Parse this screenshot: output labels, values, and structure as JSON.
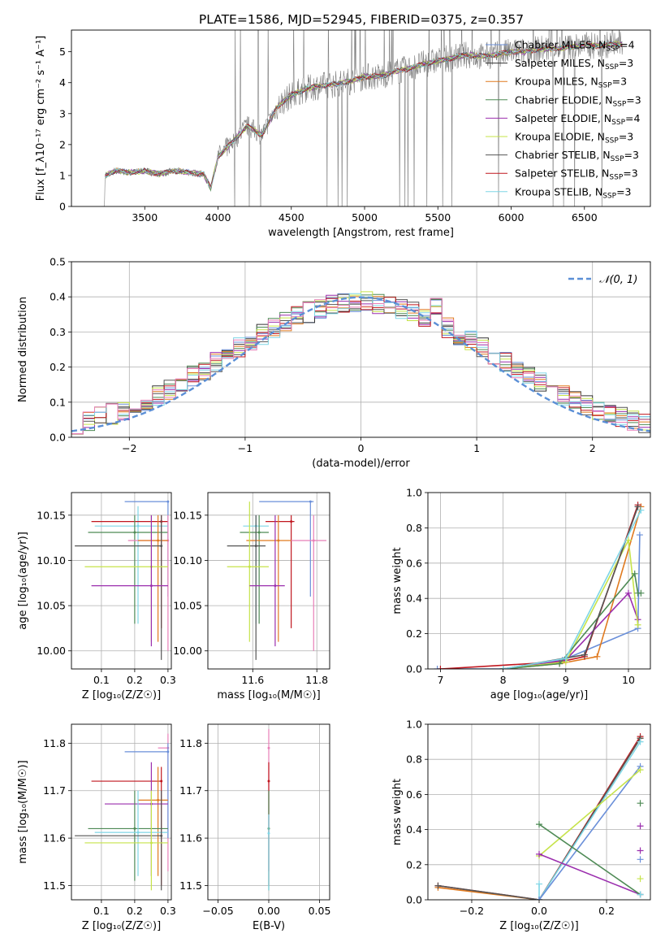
{
  "title": "PLATE=1586, MJD=52945, FIBERID=0375, z=0.357",
  "colors": {
    "chabrier_miles": "#6a8fd9",
    "salpeter_miles": "#333333",
    "kroupa_miles": "#e07a1f",
    "chabrier_elodie": "#4e8a55",
    "salpeter_elodie": "#9b2fae",
    "kroupa_elodie": "#c6e34a",
    "chabrier_stelib": "#555555",
    "salpeter_stelib": "#c0161e",
    "kroupa_stelib": "#7fd6e6",
    "spectrum": "#808080",
    "pink": "#e87fb8",
    "grid": "#b0b0b0"
  },
  "chart_data": [
    {
      "id": "spectrum",
      "type": "line",
      "xlabel": "wavelength [Angstrom, rest frame]",
      "ylabel": "Flux [f_λ10⁻¹⁷ erg cm⁻² s⁻¹ A⁻¹]",
      "xlim": [
        3000,
        6950
      ],
      "ylim": [
        0,
        5.7
      ],
      "xticks": [
        3500,
        4000,
        4500,
        5000,
        5500,
        6000,
        6500
      ],
      "yticks": [
        0,
        1,
        2,
        3,
        4,
        5
      ],
      "grid": false,
      "legend_position": "top-right",
      "legend": [
        {
          "key": "chabrier_miles",
          "label": "Chabrier MILES, N",
          "sub": "SSP",
          "suffix": "=4"
        },
        {
          "key": "salpeter_miles",
          "label": "Salpeter MILES, N",
          "sub": "SSP",
          "suffix": "=3"
        },
        {
          "key": "kroupa_miles",
          "label": "Kroupa MILES, N",
          "sub": "SSP",
          "suffix": "=3"
        },
        {
          "key": "chabrier_elodie",
          "label": "Chabrier ELODIE, N",
          "sub": "SSP",
          "suffix": "=3"
        },
        {
          "key": "salpeter_elodie",
          "label": "Salpeter ELODIE, N",
          "sub": "SSP",
          "suffix": "=4"
        },
        {
          "key": "kroupa_elodie",
          "label": "Kroupa ELODIE, N",
          "sub": "SSP",
          "suffix": "=3"
        },
        {
          "key": "chabrier_stelib",
          "label": "Chabrier STELIB, N",
          "sub": "SSP",
          "suffix": "=3"
        },
        {
          "key": "salpeter_stelib",
          "label": "Salpeter STELIB, N",
          "sub": "SSP",
          "suffix": "=3"
        },
        {
          "key": "kroupa_stelib",
          "label": "Kroupa STELIB, N",
          "sub": "SSP",
          "suffix": "=3"
        }
      ],
      "continuum": [
        [
          3205,
          0.0
        ],
        [
          3225,
          0.0
        ],
        [
          3230,
          1.0
        ],
        [
          3300,
          1.15
        ],
        [
          3400,
          1.1
        ],
        [
          3500,
          1.15
        ],
        [
          3600,
          1.05
        ],
        [
          3700,
          1.15
        ],
        [
          3800,
          1.1
        ],
        [
          3900,
          1.05
        ],
        [
          3950,
          0.6
        ],
        [
          4000,
          1.6
        ],
        [
          4100,
          2.1
        ],
        [
          4200,
          2.6
        ],
        [
          4300,
          2.3
        ],
        [
          4400,
          3.2
        ],
        [
          4500,
          3.6
        ],
        [
          4600,
          3.8
        ],
        [
          4700,
          3.9
        ],
        [
          4800,
          3.95
        ],
        [
          4900,
          4.05
        ],
        [
          5000,
          4.2
        ],
        [
          5100,
          4.2
        ],
        [
          5200,
          4.35
        ],
        [
          5300,
          4.45
        ],
        [
          5400,
          4.6
        ],
        [
          5500,
          4.7
        ],
        [
          5600,
          4.8
        ],
        [
          5700,
          4.9
        ],
        [
          5800,
          4.85
        ],
        [
          5900,
          4.9
        ],
        [
          6000,
          5.0
        ],
        [
          6100,
          5.0
        ],
        [
          6200,
          5.1
        ],
        [
          6300,
          5.1
        ],
        [
          6400,
          5.15
        ],
        [
          6500,
          5.2
        ],
        [
          6600,
          5.2
        ],
        [
          6700,
          5.25
        ],
        [
          6760,
          5.25
        ]
      ]
    },
    {
      "id": "residuals",
      "type": "line",
      "xlabel": "(data-model)/error",
      "ylabel": "Normed distribution",
      "xlim": [
        -2.5,
        2.5
      ],
      "ylim": [
        0,
        0.5
      ],
      "xticks": [
        -2,
        -1,
        0,
        1,
        2
      ],
      "yticks": [
        0.0,
        0.1,
        0.2,
        0.3,
        0.4,
        0.5
      ],
      "grid": true,
      "legend_position": "top-right",
      "legend_label": "𝒩(0, 1)",
      "gaussian": {
        "mean": 0,
        "sigma": 1
      }
    },
    {
      "id": "age_vs_Z",
      "type": "scatter",
      "xlabel": "Z [log₁₀(Z/Z☉)]",
      "ylabel": "age  [log₁₀(age/yr)]",
      "xlim": [
        0.01,
        0.31
      ],
      "ylim": [
        9.98,
        10.175
      ],
      "xticks": [
        0.1,
        0.2,
        0.3
      ],
      "yticks": [
        10.0,
        10.05,
        10.1,
        10.15
      ],
      "grid": true,
      "points": [
        {
          "s": "chabrier_miles",
          "x": 0.3,
          "xlo": 0.17,
          "xhi": 0.3,
          "y": 10.165,
          "ylo": 10.06,
          "yhi": 10.165
        },
        {
          "s": "kroupa_stelib",
          "x": 0.21,
          "xlo": 0.08,
          "xhi": 0.3,
          "y": 10.138,
          "ylo": 10.03,
          "yhi": 10.16
        },
        {
          "s": "salpeter_stelib",
          "x": 0.28,
          "xlo": 0.07,
          "xhi": 0.3,
          "y": 10.143,
          "ylo": 10.025,
          "yhi": 10.15
        },
        {
          "s": "chabrier_elodie",
          "x": 0.2,
          "xlo": 0.06,
          "xhi": 0.3,
          "y": 10.131,
          "ylo": 10.03,
          "yhi": 10.15
        },
        {
          "s": "pink",
          "x": 0.3,
          "xlo": 0.18,
          "xhi": 0.3,
          "y": 10.122,
          "ylo": 10.0,
          "yhi": 10.15
        },
        {
          "s": "kroupa_miles",
          "x": 0.27,
          "xlo": 0.21,
          "xhi": 0.3,
          "y": 10.122,
          "ylo": 10.01,
          "yhi": 10.15
        },
        {
          "s": "chabrier_stelib",
          "x": 0.28,
          "xlo": 0.02,
          "xhi": 0.28,
          "y": 10.116,
          "ylo": 9.99,
          "yhi": 10.15
        },
        {
          "s": "kroupa_elodie",
          "x": 0.25,
          "xlo": 0.05,
          "xhi": 0.3,
          "y": 10.093,
          "ylo": 10.01,
          "yhi": 10.15
        },
        {
          "s": "salpeter_elodie",
          "x": 0.25,
          "xlo": 0.07,
          "xhi": 0.3,
          "y": 10.072,
          "ylo": 10.005,
          "yhi": 10.15
        }
      ]
    },
    {
      "id": "age_vs_mass",
      "type": "scatter",
      "xlabel": "mass [log₁₀(M/M☉)]",
      "ylabel": "",
      "xlim": [
        11.46,
        11.84
      ],
      "ylim": [
        9.98,
        10.175
      ],
      "xticks": [
        11.6,
        11.8
      ],
      "yticks": [
        10.0,
        10.05,
        10.1,
        10.15
      ],
      "grid": true,
      "points": [
        {
          "s": "chabrier_miles",
          "x": 11.78,
          "xlo": 11.62,
          "xhi": 11.79,
          "y": 10.165,
          "ylo": 10.06,
          "yhi": 10.165
        },
        {
          "s": "kroupa_stelib",
          "x": 11.61,
          "xlo": 11.57,
          "xhi": 11.65,
          "y": 10.138,
          "ylo": 10.03,
          "yhi": 10.15
        },
        {
          "s": "salpeter_stelib",
          "x": 11.72,
          "xlo": 11.64,
          "xhi": 11.73,
          "y": 10.143,
          "ylo": 10.025,
          "yhi": 10.15
        },
        {
          "s": "chabrier_elodie",
          "x": 11.62,
          "xlo": 11.56,
          "xhi": 11.65,
          "y": 10.131,
          "ylo": 10.03,
          "yhi": 10.15
        },
        {
          "s": "pink",
          "x": 11.79,
          "xlo": 11.72,
          "xhi": 11.83,
          "y": 10.122,
          "ylo": 10.0,
          "yhi": 10.15
        },
        {
          "s": "kroupa_miles",
          "x": 11.68,
          "xlo": 11.58,
          "xhi": 11.72,
          "y": 10.122,
          "ylo": 10.01,
          "yhi": 10.15
        },
        {
          "s": "chabrier_stelib",
          "x": 11.61,
          "xlo": 11.52,
          "xhi": 11.64,
          "y": 10.116,
          "ylo": 9.99,
          "yhi": 10.15
        },
        {
          "s": "kroupa_elodie",
          "x": 11.59,
          "xlo": 11.52,
          "xhi": 11.65,
          "y": 10.093,
          "ylo": 10.01,
          "yhi": 10.165
        },
        {
          "s": "salpeter_elodie",
          "x": 11.67,
          "xlo": 11.59,
          "xhi": 11.7,
          "y": 10.072,
          "ylo": 10.005,
          "yhi": 10.15
        }
      ]
    },
    {
      "id": "massweight_vs_age",
      "type": "line",
      "xlabel": "age  [log₁₀(age/yr)]",
      "ylabel": "mass weight",
      "xlim": [
        6.8,
        10.35
      ],
      "ylim": [
        0,
        1
      ],
      "xticks": [
        7,
        8,
        9,
        10
      ],
      "yticks": [
        0.0,
        0.2,
        0.4,
        0.6,
        0.8,
        1.0
      ],
      "grid": true,
      "series": [
        {
          "s": "chabrier_miles",
          "x": [
            6.95,
            8.0,
            8.95,
            10.15,
            10.18
          ],
          "y": [
            0.0,
            0.0,
            0.05,
            0.23,
            0.76
          ]
        },
        {
          "s": "kroupa_miles",
          "x": [
            8.0,
            8.9,
            9.5,
            10.2
          ],
          "y": [
            0.0,
            0.03,
            0.07,
            0.92
          ]
        },
        {
          "s": "salpeter_stelib",
          "x": [
            7.0,
            8.9,
            9.3,
            10.15
          ],
          "y": [
            0.0,
            0.04,
            0.07,
            0.93
          ]
        },
        {
          "s": "salpeter_elodie",
          "x": [
            8.0,
            9.0,
            10.0,
            10.15
          ],
          "y": [
            0.0,
            0.05,
            0.43,
            0.28
          ]
        },
        {
          "s": "kroupa_elodie",
          "x": [
            8.0,
            9.0,
            10.0,
            10.15
          ],
          "y": [
            0.0,
            0.04,
            0.73,
            0.25
          ]
        },
        {
          "s": "chabrier_elodie",
          "x": [
            8.0,
            8.9,
            10.1,
            10.15,
            10.2
          ],
          "y": [
            0.0,
            0.03,
            0.54,
            0.43,
            0.43
          ]
        },
        {
          "s": "chabrier_stelib",
          "x": [
            8.0,
            9.3,
            10.15
          ],
          "y": [
            0.0,
            0.08,
            0.92
          ]
        },
        {
          "s": "kroupa_stelib",
          "x": [
            8.0,
            9.0,
            10.2
          ],
          "y": [
            0.0,
            0.06,
            0.9
          ]
        }
      ]
    },
    {
      "id": "mass_vs_Z",
      "type": "scatter",
      "xlabel": "Z [log₁₀(Z/Z☉)]",
      "ylabel": "mass [log₁₀(M/M☉)]",
      "xlim": [
        0.01,
        0.31
      ],
      "ylim": [
        11.47,
        11.84
      ],
      "xticks": [
        0.1,
        0.2,
        0.3
      ],
      "yticks": [
        11.5,
        11.6,
        11.7,
        11.8
      ],
      "grid": true,
      "points": [
        {
          "s": "pink",
          "x": 0.3,
          "xlo": 0.27,
          "xhi": 0.3,
          "y": 11.79,
          "ylo": 11.53,
          "yhi": 11.82
        },
        {
          "s": "chabrier_miles",
          "x": 0.3,
          "xlo": 0.17,
          "xhi": 0.3,
          "y": 11.782,
          "ylo": 11.6,
          "yhi": 11.8
        },
        {
          "s": "salpeter_stelib",
          "x": 0.28,
          "xlo": 0.07,
          "xhi": 0.28,
          "y": 11.72,
          "ylo": 11.5,
          "yhi": 11.75
        },
        {
          "s": "kroupa_miles",
          "x": 0.27,
          "xlo": 0.21,
          "xhi": 0.3,
          "y": 11.68,
          "ylo": 11.52,
          "yhi": 11.75
        },
        {
          "s": "salpeter_elodie",
          "x": 0.25,
          "xlo": 0.11,
          "xhi": 0.3,
          "y": 11.672,
          "ylo": 11.52,
          "yhi": 11.76
        },
        {
          "s": "chabrier_elodie",
          "x": 0.2,
          "xlo": 0.06,
          "xhi": 0.3,
          "y": 11.62,
          "ylo": 11.51,
          "yhi": 11.7
        },
        {
          "s": "kroupa_stelib",
          "x": 0.21,
          "xlo": 0.08,
          "xhi": 0.3,
          "y": 11.612,
          "ylo": 11.52,
          "yhi": 11.7
        },
        {
          "s": "chabrier_stelib",
          "x": 0.28,
          "xlo": 0.02,
          "xhi": 0.28,
          "y": 11.605,
          "ylo": 11.49,
          "yhi": 11.7
        },
        {
          "s": "kroupa_elodie",
          "x": 0.25,
          "xlo": 0.05,
          "xhi": 0.3,
          "y": 11.59,
          "ylo": 11.49,
          "yhi": 11.7
        }
      ]
    },
    {
      "id": "mass_vs_ebv",
      "type": "scatter",
      "xlabel": "E(B-V)",
      "ylabel": "",
      "xlim": [
        -0.06,
        0.06
      ],
      "ylim": [
        11.47,
        11.84
      ],
      "xticks": [
        -0.05,
        0.0,
        0.05
      ],
      "xticklabels": [
        "−0.05",
        "0.00",
        "0.05"
      ],
      "yticks": [
        11.5,
        11.6,
        11.7,
        11.8
      ],
      "grid": true,
      "points": [
        {
          "s": "pink",
          "x": 0.0,
          "y": 11.79,
          "ylo": 11.53,
          "yhi": 11.83
        },
        {
          "s": "salpeter_stelib",
          "x": 0.0,
          "y": 11.72,
          "ylo": 11.5,
          "yhi": 11.76
        },
        {
          "s": "chabrier_elodie",
          "x": 0.0,
          "y": 11.62,
          "ylo": 11.49,
          "yhi": 11.7
        },
        {
          "s": "kroupa_stelib",
          "x": 0.0,
          "y": 11.61,
          "ylo": 11.49,
          "yhi": 11.65
        }
      ]
    },
    {
      "id": "massweight_vs_Z",
      "type": "line",
      "xlabel": "Z [log₁₀(Z/Z☉)]",
      "ylabel": "mass weight",
      "xlim": [
        -0.33,
        0.33
      ],
      "ylim": [
        0,
        1
      ],
      "xticks": [
        -0.2,
        0.0,
        0.2
      ],
      "xticklabels": [
        "−0.2",
        "0.0",
        "0.2"
      ],
      "yticks": [
        0.0,
        0.2,
        0.4,
        0.6,
        0.8,
        1.0
      ],
      "grid": true,
      "series": [
        {
          "s": "salpeter_stelib",
          "x": [
            -0.3,
            0.0,
            0.3
          ],
          "y": [
            0.08,
            0.0,
            0.93
          ]
        },
        {
          "s": "kroupa_miles",
          "x": [
            -0.3,
            0.0,
            0.3
          ],
          "y": [
            0.07,
            0.0,
            0.92
          ]
        },
        {
          "s": "chabrier_stelib",
          "x": [
            -0.3,
            0.0,
            0.3
          ],
          "y": [
            0.08,
            0.0,
            0.92
          ]
        },
        {
          "s": "kroupa_stelib",
          "x": [
            0.0,
            0.0,
            0.3
          ],
          "y": [
            0.09,
            0.0,
            0.9
          ]
        },
        {
          "s": "chabrier_miles",
          "x": [
            0.0,
            0.3
          ],
          "y": [
            0.0,
            0.76
          ]
        },
        {
          "s": "kroupa_elodie",
          "x": [
            0.0,
            0.3
          ],
          "y": [
            0.25,
            0.74
          ]
        },
        {
          "s": "salpeter_elodie",
          "x": [
            0.0,
            0.3
          ],
          "y": [
            0.26,
            0.03
          ]
        },
        {
          "s": "chabrier_elodie",
          "x": [
            0.0,
            0.3
          ],
          "y": [
            0.43,
            0.03
          ]
        }
      ],
      "markers": [
        {
          "s": "chabrier_elodie",
          "x": 0.3,
          "y": 0.55
        },
        {
          "s": "salpeter_elodie",
          "x": 0.3,
          "y": 0.42
        },
        {
          "s": "salpeter_elodie",
          "x": 0.3,
          "y": 0.28
        },
        {
          "s": "chabrier_miles",
          "x": 0.3,
          "y": 0.23
        },
        {
          "s": "kroupa_elodie",
          "x": 0.3,
          "y": 0.12
        },
        {
          "s": "kroupa_stelib",
          "x": 0.3,
          "y": 0.03
        }
      ]
    }
  ]
}
